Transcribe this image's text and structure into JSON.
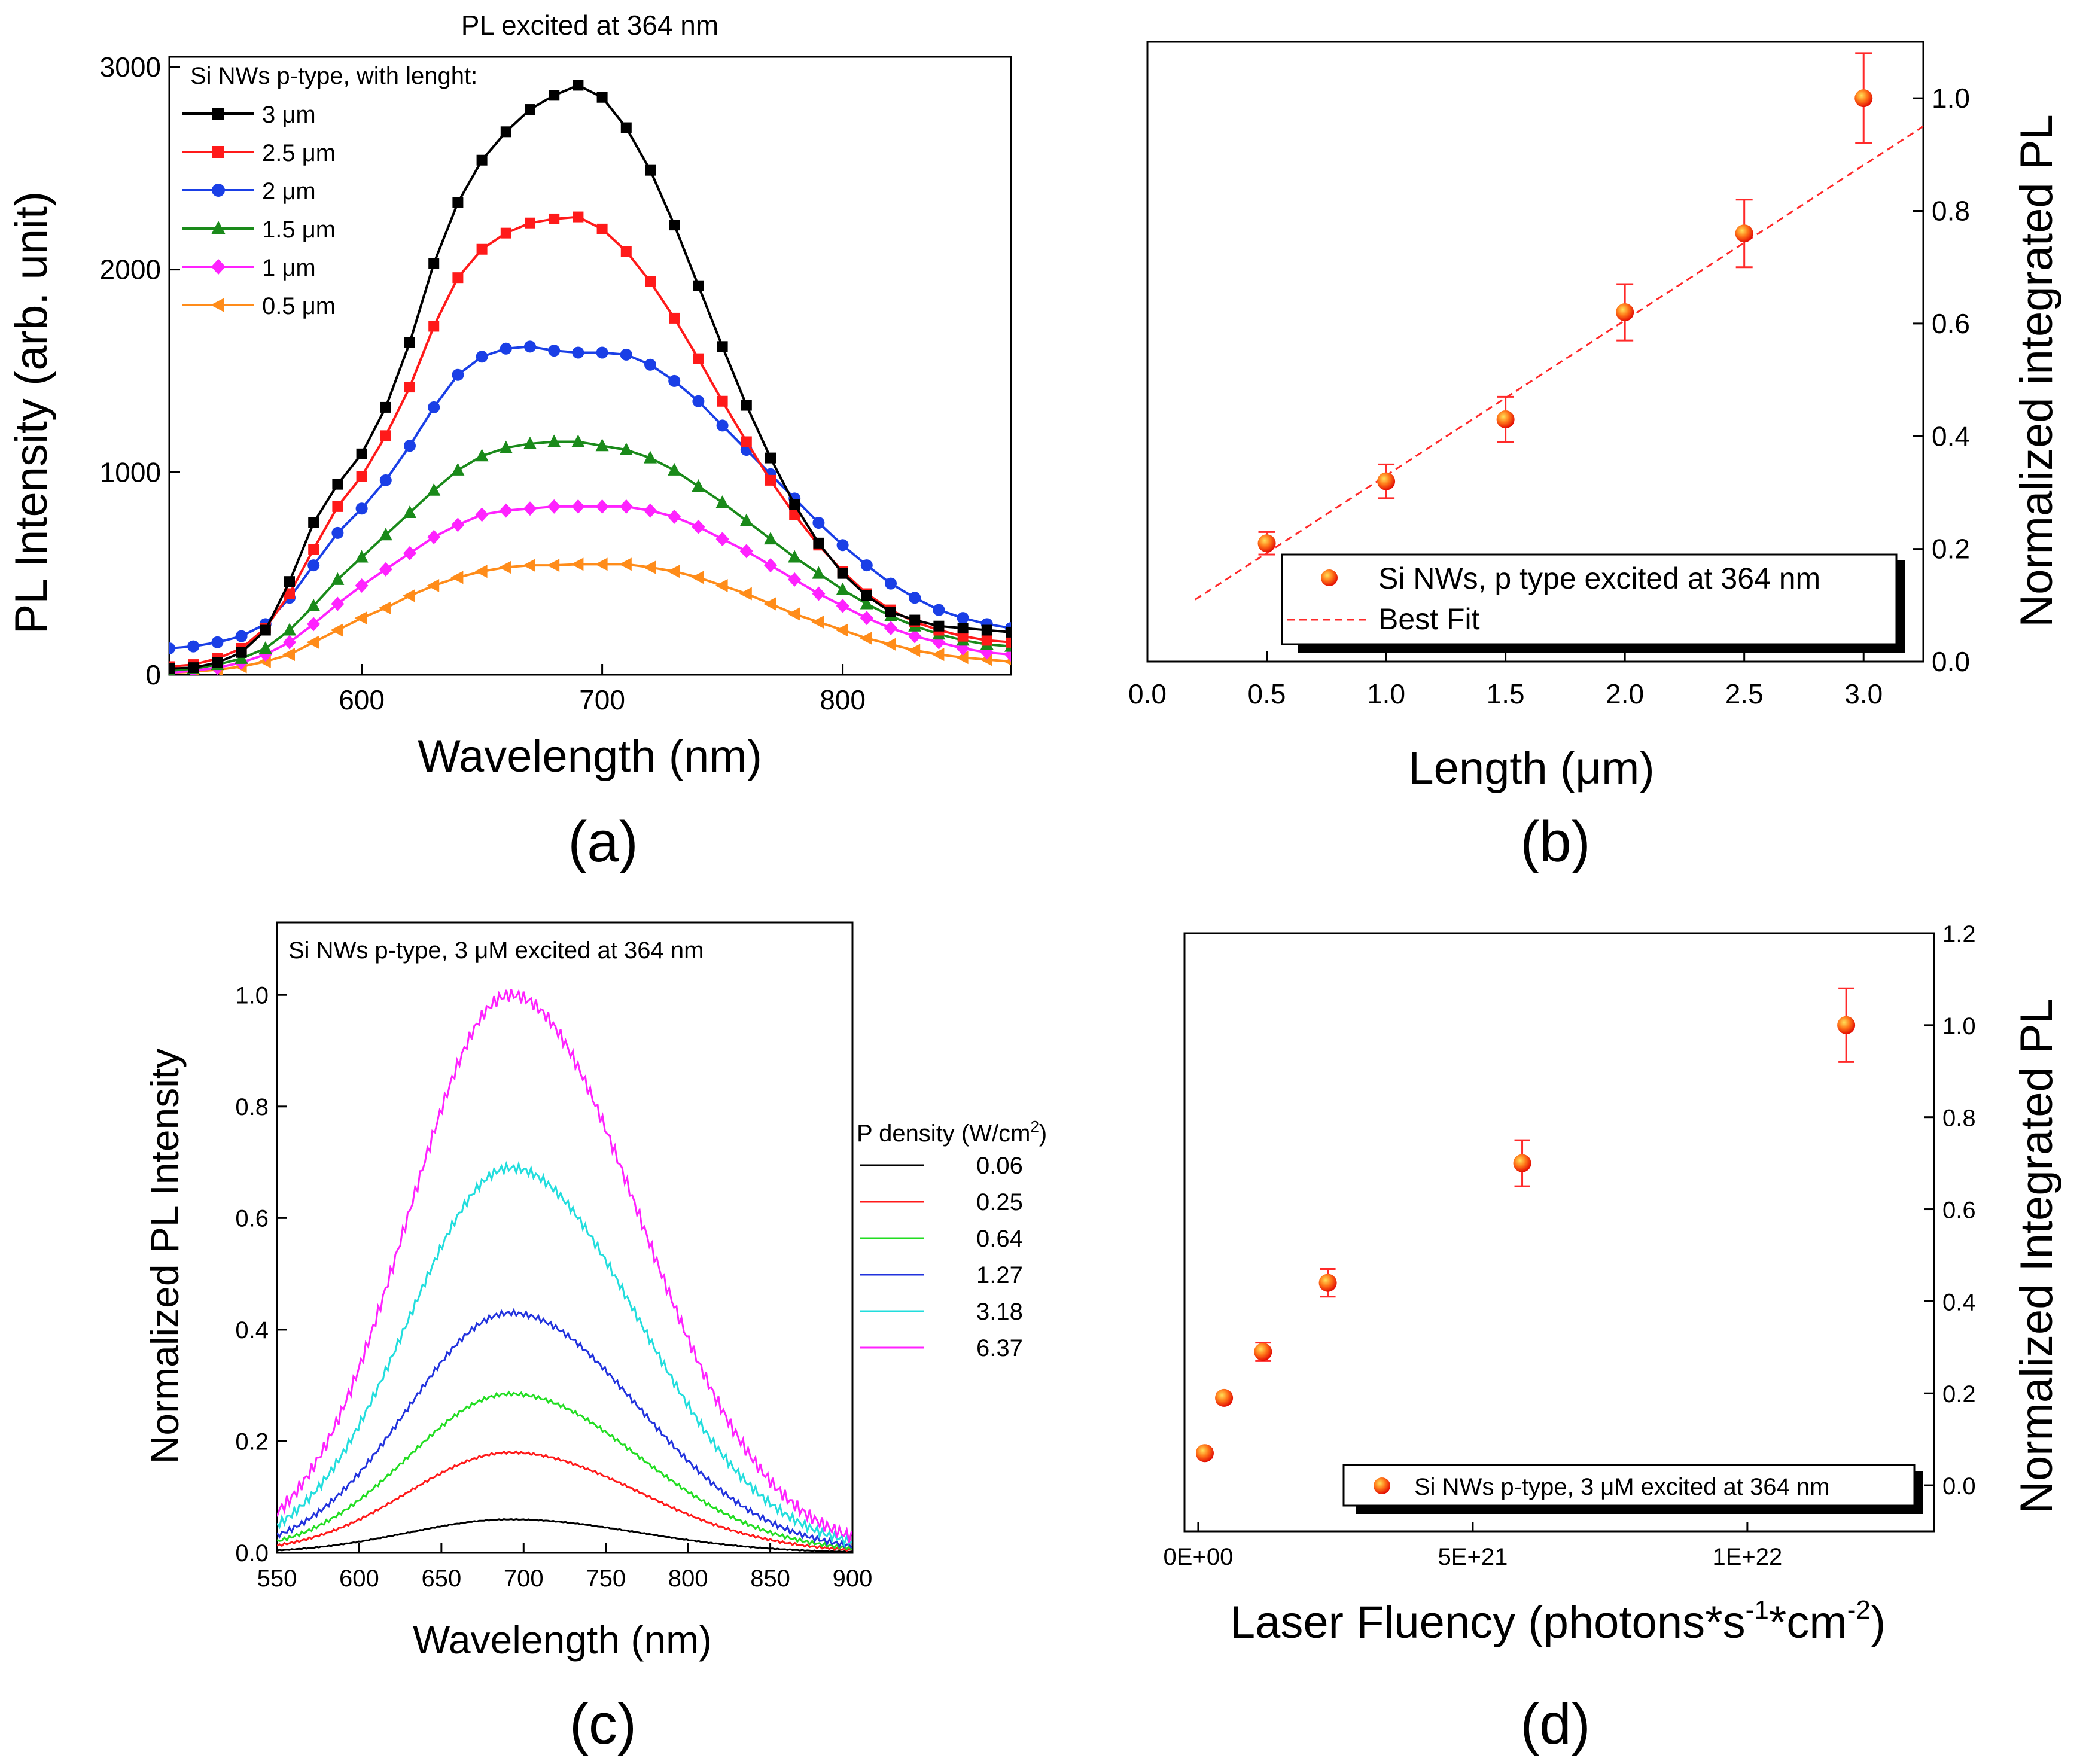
{
  "chart_data": [
    {
      "type": "line",
      "panel_label": "(a)",
      "title": "PL excited at 364 nm",
      "xlabel": "Wavelength (nm)",
      "ylabel": "PL Intensity (arb. unit)",
      "xlim": [
        520,
        870
      ],
      "ylim": [
        0,
        3050
      ],
      "xticks": [
        600,
        700,
        800
      ],
      "yticks": [
        0,
        1000,
        2000,
        3000
      ],
      "legend_title": "Si NWs p-type, with lenght:",
      "legend_position": "top-left",
      "x": [
        520,
        530,
        540,
        550,
        560,
        570,
        580,
        590,
        600,
        610,
        620,
        630,
        640,
        650,
        660,
        670,
        680,
        690,
        700,
        710,
        720,
        730,
        740,
        750,
        760,
        770,
        780,
        790,
        800,
        810,
        820,
        830,
        840,
        850,
        860,
        870
      ],
      "series": [
        {
          "name": "3 μm",
          "color": "#000000",
          "marker": "square",
          "values": [
            30,
            35,
            60,
            110,
            220,
            460,
            750,
            940,
            1090,
            1320,
            1640,
            2030,
            2330,
            2540,
            2680,
            2790,
            2860,
            2910,
            2850,
            2700,
            2490,
            2220,
            1920,
            1620,
            1330,
            1070,
            840,
            650,
            500,
            390,
            310,
            270,
            240,
            230,
            220,
            210
          ]
        },
        {
          "name": "2.5 μm",
          "color": "#ff1a1a",
          "marker": "square",
          "values": [
            40,
            50,
            80,
            130,
            230,
            400,
            620,
            830,
            980,
            1180,
            1420,
            1720,
            1960,
            2100,
            2180,
            2230,
            2250,
            2260,
            2200,
            2090,
            1940,
            1760,
            1560,
            1350,
            1150,
            960,
            790,
            640,
            510,
            400,
            320,
            260,
            220,
            190,
            170,
            160
          ]
        },
        {
          "name": "2 μm",
          "color": "#1a3fe6",
          "marker": "circle",
          "values": [
            130,
            140,
            160,
            190,
            250,
            380,
            540,
            700,
            820,
            960,
            1130,
            1320,
            1480,
            1570,
            1610,
            1620,
            1600,
            1590,
            1590,
            1580,
            1530,
            1450,
            1350,
            1230,
            1110,
            990,
            870,
            750,
            640,
            540,
            450,
            380,
            320,
            280,
            250,
            230
          ]
        },
        {
          "name": "1.5 μm",
          "color": "#1a8a1a",
          "marker": "triangle-up",
          "values": [
            20,
            30,
            50,
            80,
            130,
            220,
            340,
            470,
            580,
            690,
            800,
            910,
            1010,
            1080,
            1120,
            1140,
            1150,
            1150,
            1130,
            1110,
            1070,
            1010,
            930,
            850,
            760,
            670,
            580,
            500,
            420,
            350,
            290,
            240,
            200,
            170,
            150,
            140
          ]
        },
        {
          "name": "1 μm",
          "color": "#ff22ff",
          "marker": "diamond",
          "values": [
            10,
            20,
            35,
            60,
            100,
            160,
            250,
            350,
            440,
            520,
            600,
            680,
            740,
            790,
            810,
            820,
            830,
            830,
            830,
            830,
            810,
            780,
            730,
            670,
            610,
            540,
            470,
            400,
            340,
            280,
            230,
            190,
            160,
            130,
            110,
            100
          ]
        },
        {
          "name": "0.5 μm",
          "color": "#ff8c1a",
          "marker": "triangle-left",
          "values": [
            10,
            15,
            25,
            40,
            65,
            100,
            160,
            220,
            280,
            330,
            390,
            440,
            480,
            510,
            530,
            540,
            540,
            545,
            545,
            545,
            530,
            510,
            480,
            440,
            400,
            350,
            300,
            260,
            220,
            180,
            150,
            120,
            100,
            85,
            75,
            65
          ]
        }
      ]
    },
    {
      "type": "scatter",
      "panel_label": "(b)",
      "xlabel": "Length (μm)",
      "ylabel": "Normalized integrated PL",
      "xlim": [
        0.0,
        3.25
      ],
      "ylim": [
        0.0,
        1.1
      ],
      "xticks": [
        0.0,
        0.5,
        1.0,
        1.5,
        2.0,
        2.5,
        3.0
      ],
      "yticks": [
        0.0,
        0.2,
        0.4,
        0.6,
        0.8,
        1.0
      ],
      "y_axis_side": "right",
      "legend_position": "bottom-right",
      "legend_entries": [
        "Si NWs, p type excited at 364 nm",
        "Best Fit"
      ],
      "points": {
        "x": [
          0.5,
          1.0,
          1.5,
          2.0,
          2.5,
          3.0
        ],
        "y": [
          0.21,
          0.32,
          0.43,
          0.62,
          0.76,
          1.0
        ],
        "yerr": [
          0.02,
          0.03,
          0.04,
          0.05,
          0.06,
          0.08
        ]
      },
      "fit_line": {
        "x": [
          0.2,
          3.25
        ],
        "y": [
          0.11,
          0.95
        ]
      }
    },
    {
      "type": "line",
      "panel_label": "(c)",
      "title": "Si NWs p-type, 3 μM excited at 364 nm",
      "xlabel": "Wavelength (nm)",
      "ylabel": "Normalized PL Intensity",
      "xlim": [
        550,
        900
      ],
      "ylim": [
        0.0,
        1.13
      ],
      "xticks": [
        550,
        600,
        650,
        700,
        750,
        800,
        850,
        900
      ],
      "yticks": [
        0.0,
        0.2,
        0.4,
        0.6,
        0.8,
        1.0
      ],
      "legend_title_main": "P density (W/cm",
      "legend_title_sup": "2",
      "legend_title_end": ")",
      "legend_position": "right",
      "peak_wavelength": 692,
      "series": [
        {
          "name": "0.06",
          "color": "#000000",
          "peak": 0.06
        },
        {
          "name": "0.25",
          "color": "#ff1a1a",
          "peak": 0.18
        },
        {
          "name": "0.64",
          "color": "#22dd22",
          "peak": 0.285
        },
        {
          "name": "1.27",
          "color": "#2233dd",
          "peak": 0.43
        },
        {
          "name": "3.18",
          "color": "#22dddd",
          "peak": 0.69
        },
        {
          "name": "6.37",
          "color": "#ff22ff",
          "peak": 1.0
        }
      ]
    },
    {
      "type": "scatter",
      "panel_label": "(d)",
      "xlabel_main": "Laser Fluency (photons*s",
      "xlabel_sup1": "-1",
      "xlabel_mid": "*cm",
      "xlabel_sup2": "-2",
      "xlabel_end": ")",
      "ylabel": "Normalized Integrated PL",
      "xlim": [
        -2.5e+20,
        1.34e+22
      ],
      "ylim": [
        -0.1,
        1.2
      ],
      "xticks": [
        0,
        5e+21,
        1e+22
      ],
      "xtick_labels": [
        "0E+00",
        "5E+21",
        "1E+22"
      ],
      "yticks": [
        0.0,
        0.2,
        0.4,
        0.6,
        0.8,
        1.0,
        1.2
      ],
      "y_axis_side": "right",
      "legend_position": "bottom-right",
      "legend_entries": [
        "Si NWs p-type, 3 μM excited at 364 nm"
      ],
      "points": {
        "x": [
          1.2e+20,
          4.7e+20,
          1.18e+21,
          2.36e+21,
          5.9e+21,
          1.18e+22
        ],
        "y": [
          0.07,
          0.19,
          0.29,
          0.44,
          0.7,
          1.0
        ],
        "yerr": [
          0.01,
          0.01,
          0.02,
          0.03,
          0.05,
          0.08
        ]
      }
    }
  ]
}
